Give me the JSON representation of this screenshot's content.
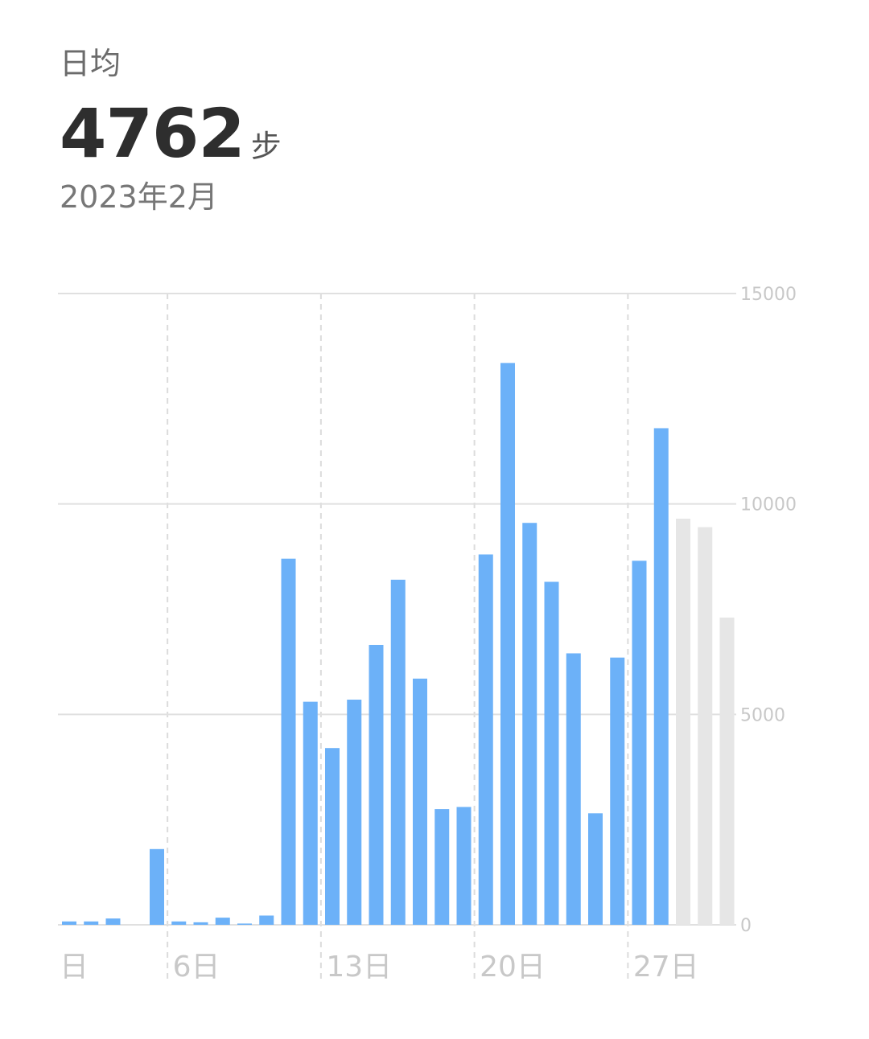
{
  "header": {
    "label": "日均",
    "value": "4762",
    "unit": "步",
    "period": "2023年2月"
  },
  "colors": {
    "bar": "#6cb1f8",
    "bar_future": "#e6e6e6",
    "grid": "#e0e0e0",
    "axis_text": "#c8c8c8"
  },
  "chart_data": {
    "type": "bar",
    "ylim": [
      0,
      15000
    ],
    "y_ticks": [
      "15000",
      "10000",
      "5000",
      "0"
    ],
    "x_tick_labels": [
      "日",
      "6日",
      "13日",
      "20日",
      "27日"
    ],
    "x_tick_days": [
      0,
      6,
      13,
      20,
      27
    ],
    "categories": [
      1,
      2,
      3,
      4,
      5,
      6,
      7,
      8,
      9,
      10,
      11,
      12,
      13,
      14,
      15,
      16,
      17,
      18,
      19,
      20,
      21,
      22,
      23,
      24,
      25,
      26,
      27,
      28,
      29,
      30,
      31
    ],
    "values": [
      80,
      80,
      150,
      0,
      1800,
      80,
      60,
      170,
      30,
      220,
      8700,
      5300,
      4200,
      5350,
      6650,
      8200,
      5850,
      2750,
      2800,
      8800,
      13350,
      9550,
      8150,
      6450,
      2650,
      6350,
      8650,
      11800,
      9650,
      9450,
      7300
    ],
    "future_from_index": 28,
    "grid": true
  }
}
